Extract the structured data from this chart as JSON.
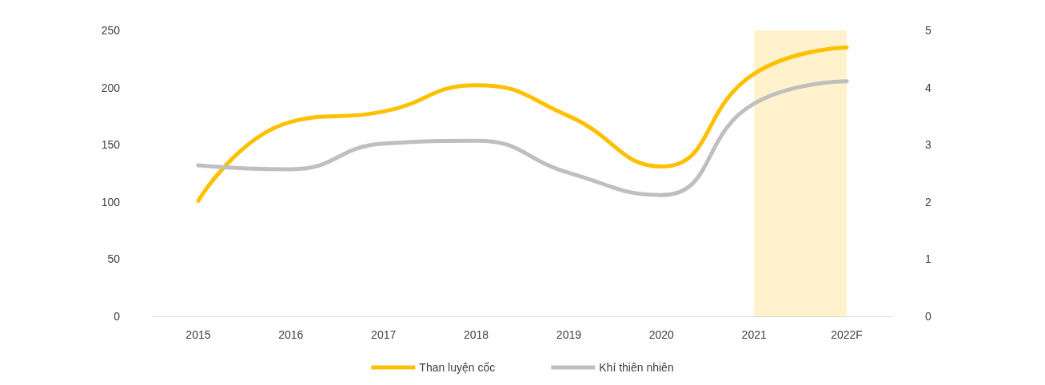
{
  "chart_data": {
    "type": "line",
    "categories": [
      "2015",
      "2016",
      "2017",
      "2018",
      "2019",
      "2020",
      "2021",
      "2022F"
    ],
    "series": [
      {
        "name": "Than luyện cốc",
        "color": "#ffc000",
        "values": [
          101,
          170,
          179,
          202,
          175,
          131,
          212,
          235
        ]
      },
      {
        "name": "Khí thiên nhiên",
        "color": "#bfbfbf",
        "axis": "y2",
        "values": [
          2.64,
          2.57,
          3.02,
          3.07,
          2.51,
          2.12,
          3.72,
          4.11
        ]
      }
    ],
    "ylim": [
      0,
      250
    ],
    "yticks": [
      0,
      50,
      100,
      150,
      200,
      250
    ],
    "y2lim": [
      0,
      5
    ],
    "y2ticks": [
      0,
      1,
      2,
      3,
      4,
      5
    ],
    "bands": [
      {
        "axis": "x",
        "from": "2021",
        "to": "2022F",
        "color": "#fff2cc"
      }
    ],
    "grid": false,
    "legend": "bottom",
    "marker": "none",
    "line_style": "solid"
  }
}
